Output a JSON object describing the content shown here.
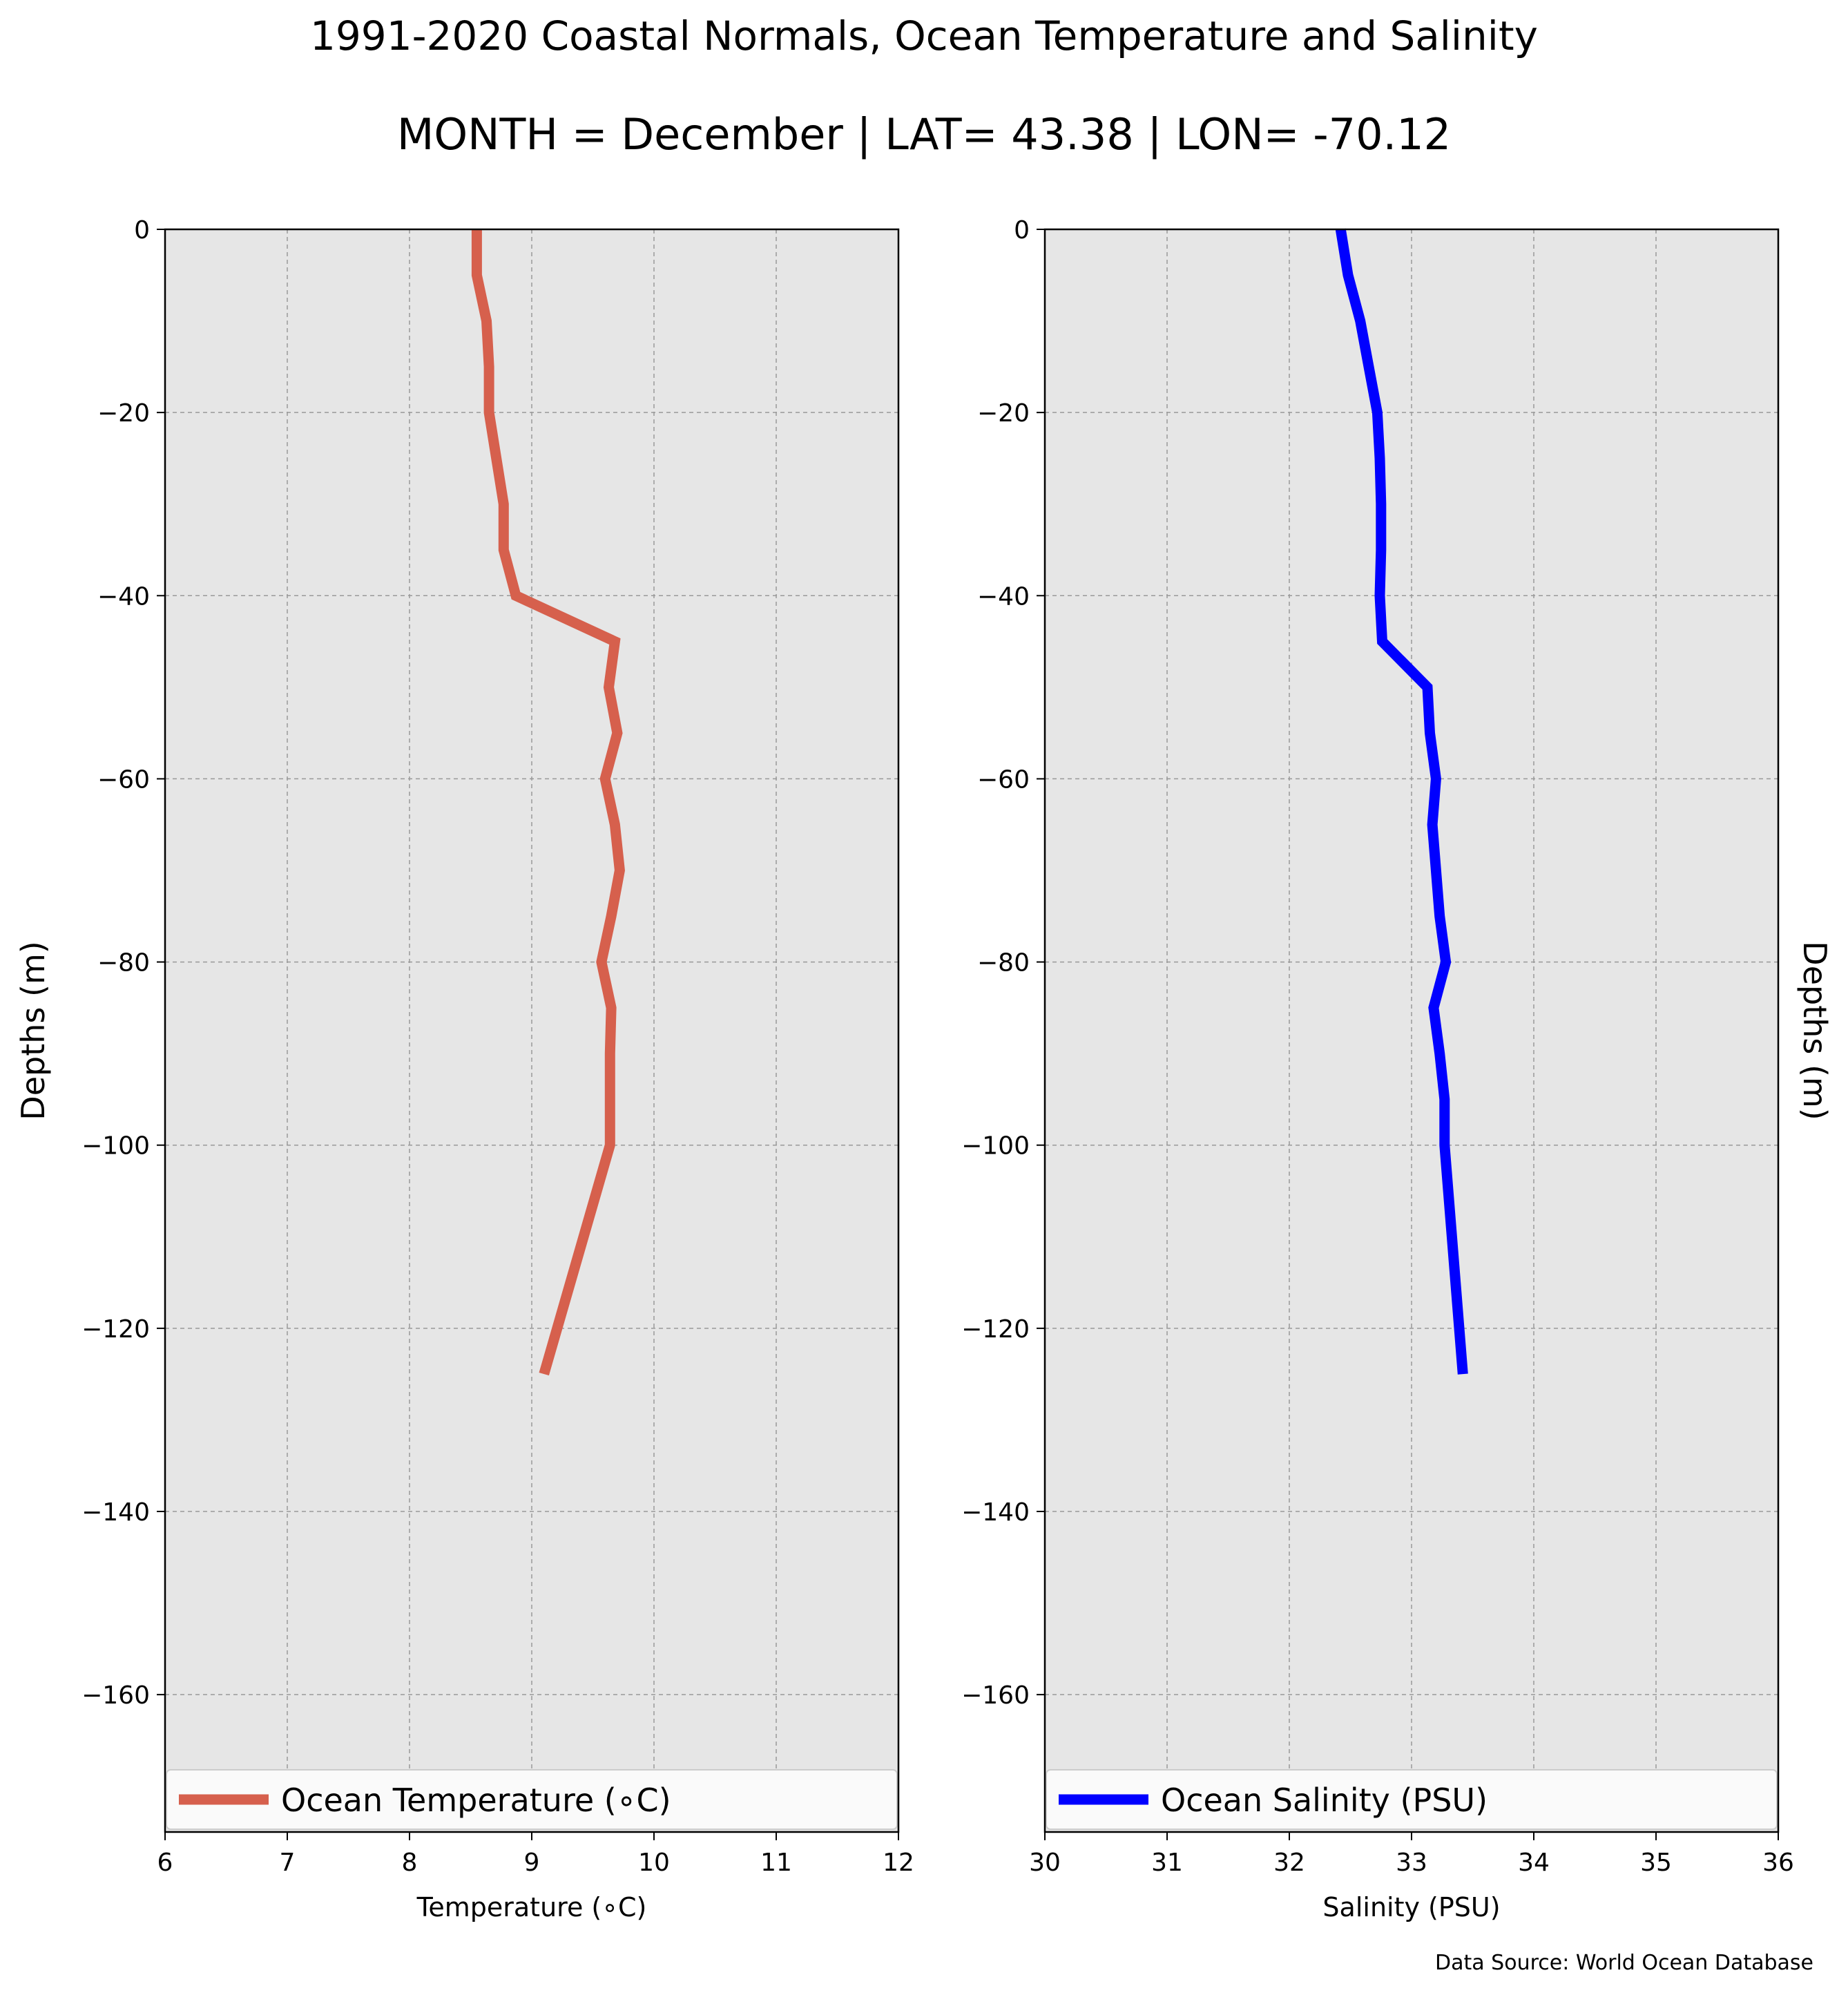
{
  "header": {
    "title": "1991-2020 Coastal Normals, Ocean Temperature and Salinity",
    "subtitle": "MONTH = December | LAT= 43.38 | LON= -70.12"
  },
  "footer": {
    "source": "Data Source: World Ocean Database"
  },
  "colors": {
    "plot_background": "#e6e6e6",
    "temperature": "#d6604d",
    "salinity": "#0000ff",
    "grid": "#999999"
  },
  "chart_data": [
    {
      "type": "line",
      "xlabel": "Temperature ($^\\circ$C)",
      "xlabel_display": "Temperature (∘C)",
      "ylabel": "Depths (m)",
      "xlim": [
        6,
        12
      ],
      "ylim": [
        -175,
        0
      ],
      "xticks": [
        6,
        7,
        8,
        9,
        10,
        11,
        12
      ],
      "yticks": [
        0,
        -20,
        -40,
        -60,
        -80,
        -100,
        -120,
        -140,
        -160
      ],
      "grid": true,
      "legend_position": "bottom",
      "series": [
        {
          "name": "Ocean Temperature (∘C)",
          "color": "#d6604d",
          "x": [
            8.55,
            8.55,
            8.63,
            8.65,
            8.65,
            8.71,
            8.77,
            8.77,
            8.87,
            9.68,
            9.63,
            9.7,
            9.6,
            9.68,
            9.72,
            9.65,
            9.57,
            9.65,
            9.64,
            9.64,
            9.1
          ],
          "y": [
            0,
            -5,
            -10,
            -15,
            -20,
            -25,
            -30,
            -35,
            -40,
            -45,
            -50,
            -55,
            -60,
            -65,
            -70,
            -75,
            -80,
            -85,
            -90,
            -100,
            -125
          ]
        }
      ]
    },
    {
      "type": "line",
      "xlabel": "Salinity (PSU)",
      "ylabel": "Depths (m)",
      "xlim": [
        30,
        36
      ],
      "ylim": [
        -175,
        0
      ],
      "xticks": [
        30,
        31,
        32,
        33,
        34,
        35,
        36
      ],
      "yticks": [
        0,
        -20,
        -40,
        -60,
        -80,
        -100,
        -120,
        -140,
        -160
      ],
      "grid": true,
      "legend_position": "bottom",
      "series": [
        {
          "name": "Ocean Salinity (PSU)",
          "color": "#0000ff",
          "x": [
            32.42,
            32.48,
            32.58,
            32.65,
            32.72,
            32.74,
            32.75,
            32.75,
            32.74,
            32.76,
            33.13,
            33.15,
            33.2,
            33.17,
            33.2,
            33.23,
            33.28,
            33.18,
            33.23,
            33.27,
            33.27,
            33.42
          ],
          "y": [
            0,
            -5,
            -10,
            -15,
            -20,
            -25,
            -30,
            -35,
            -40,
            -45,
            -50,
            -55,
            -60,
            -65,
            -70,
            -75,
            -80,
            -85,
            -90,
            -95,
            -100,
            -125
          ]
        }
      ]
    }
  ]
}
